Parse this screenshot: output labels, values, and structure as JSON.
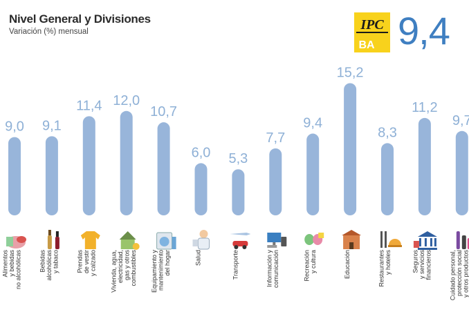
{
  "header": {
    "title": "Nivel General y Divisiones",
    "subtitle": "Variación (%) mensual",
    "logo_top": "IPC",
    "logo_bottom": "BA",
    "general_value": "9,4"
  },
  "colors": {
    "bar": "#98b5da",
    "value_text": "#8eb0d6",
    "general_value": "#3f7fc1",
    "logo_yellow": "#f8d21c"
  },
  "chart_data": {
    "type": "bar",
    "title": "Nivel General y Divisiones",
    "subtitle": "Variación (%) mensual",
    "categories": [
      [
        "Alimentos",
        "y bebidas",
        "no alcohólicas"
      ],
      [
        "Bebidas",
        "alcohólicas",
        "y tabaco"
      ],
      [
        "Prendas",
        "de vestir",
        "y calzado"
      ],
      [
        "Vivienda, agua,",
        "electricidad,",
        "gas y otros",
        "combustibles"
      ],
      [
        "Equipamiento y",
        "mantenimiento",
        "del hogar"
      ],
      [
        "Salud"
      ],
      [
        "Transporte"
      ],
      [
        "Información y",
        "comunicación"
      ],
      [
        "Recreación",
        "y cultura"
      ],
      [
        "Educación"
      ],
      [
        "Restaurantes",
        "y hoteles"
      ],
      [
        "Seguros",
        "y servicios",
        "financieros"
      ],
      [
        "Cuidado personal,",
        "protección social",
        "y otros productos"
      ]
    ],
    "values": [
      9.0,
      9.1,
      11.4,
      12.0,
      10.7,
      6.0,
      5.3,
      7.7,
      9.4,
      15.2,
      8.3,
      11.2,
      9.7
    ],
    "value_labels": [
      "9,0",
      "9,1",
      "11,4",
      "12,0",
      "10,7",
      "6,0",
      "5,3",
      "7,7",
      "9,4",
      "15,2",
      "8,3",
      "11,2",
      "9,7"
    ],
    "icons": [
      "food-icon",
      "beverages-icon",
      "clothing-icon",
      "housing-icon",
      "household-equipment-icon",
      "health-icon",
      "transport-icon",
      "communication-icon",
      "recreation-icon",
      "education-icon",
      "restaurant-icon",
      "finance-icon",
      "personal-care-icon"
    ],
    "grid": false,
    "legend": "none"
  }
}
